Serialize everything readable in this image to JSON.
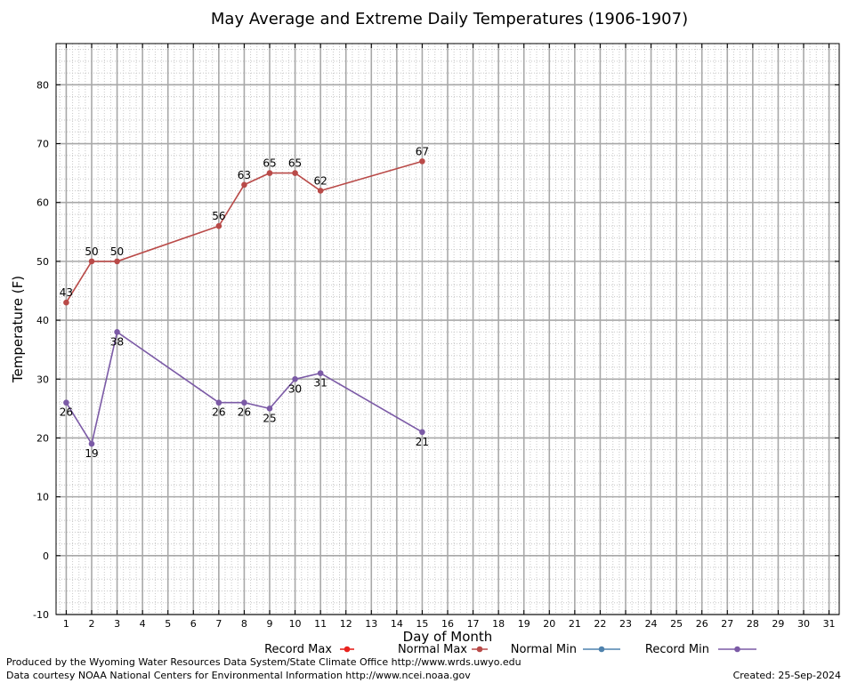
{
  "chart_data": {
    "type": "line",
    "title": "May Average and Extreme Daily Temperatures (1906-1907)",
    "xlabel": "Day of Month",
    "ylabel": "Temperature (F)",
    "xlim": [
      0.6,
      31.4
    ],
    "ylim": [
      -10,
      87
    ],
    "x_ticks": [
      1,
      2,
      3,
      4,
      5,
      6,
      7,
      8,
      9,
      10,
      11,
      12,
      13,
      14,
      15,
      16,
      17,
      18,
      19,
      20,
      21,
      22,
      23,
      24,
      25,
      26,
      27,
      28,
      29,
      30,
      31
    ],
    "y_ticks": [
      -10,
      0,
      10,
      20,
      30,
      40,
      50,
      60,
      70,
      80
    ],
    "grid": true,
    "legend_position": "bottom",
    "legend": [
      {
        "name": "Record Max",
        "color": "#e8231e"
      },
      {
        "name": "Normal Max",
        "color": "#b94a48"
      },
      {
        "name": "Normal Min",
        "color": "#4f82ad"
      },
      {
        "name": "Record Min",
        "color": "#7b5aa6"
      }
    ],
    "series": [
      {
        "name": "Normal Max",
        "color": "#b94a48",
        "label_position": "above",
        "points": [
          {
            "x": 1,
            "y": 43,
            "label": "43"
          },
          {
            "x": 2,
            "y": 50,
            "label": "50"
          },
          {
            "x": 3,
            "y": 50,
            "label": "50"
          },
          {
            "x": 7,
            "y": 56,
            "label": "56"
          },
          {
            "x": 8,
            "y": 63,
            "label": "63"
          },
          {
            "x": 9,
            "y": 65,
            "label": "65"
          },
          {
            "x": 10,
            "y": 65,
            "label": "65"
          },
          {
            "x": 11,
            "y": 62,
            "label": "62"
          },
          {
            "x": 15,
            "y": 67,
            "label": "67"
          }
        ]
      },
      {
        "name": "Record Min",
        "color": "#7b5aa6",
        "label_position": "below",
        "points": [
          {
            "x": 1,
            "y": 26,
            "label": "26"
          },
          {
            "x": 2,
            "y": 19,
            "label": "19"
          },
          {
            "x": 3,
            "y": 38,
            "label": "38"
          },
          {
            "x": 7,
            "y": 26,
            "label": "26"
          },
          {
            "x": 8,
            "y": 26,
            "label": "26"
          },
          {
            "x": 9,
            "y": 25,
            "label": "25"
          },
          {
            "x": 10,
            "y": 30,
            "label": "30"
          },
          {
            "x": 11,
            "y": 31,
            "label": "31"
          },
          {
            "x": 15,
            "y": 21,
            "label": "21"
          }
        ]
      }
    ]
  },
  "footer": {
    "produced_by": "Produced by the Wyoming Water Resources Data System/State Climate Office http://www.wrds.uwyo.edu",
    "courtesy": "Data courtesy NOAA National Centers for Environmental Information http://www.ncei.noaa.gov",
    "created": "Created: 25-Sep-2024"
  }
}
